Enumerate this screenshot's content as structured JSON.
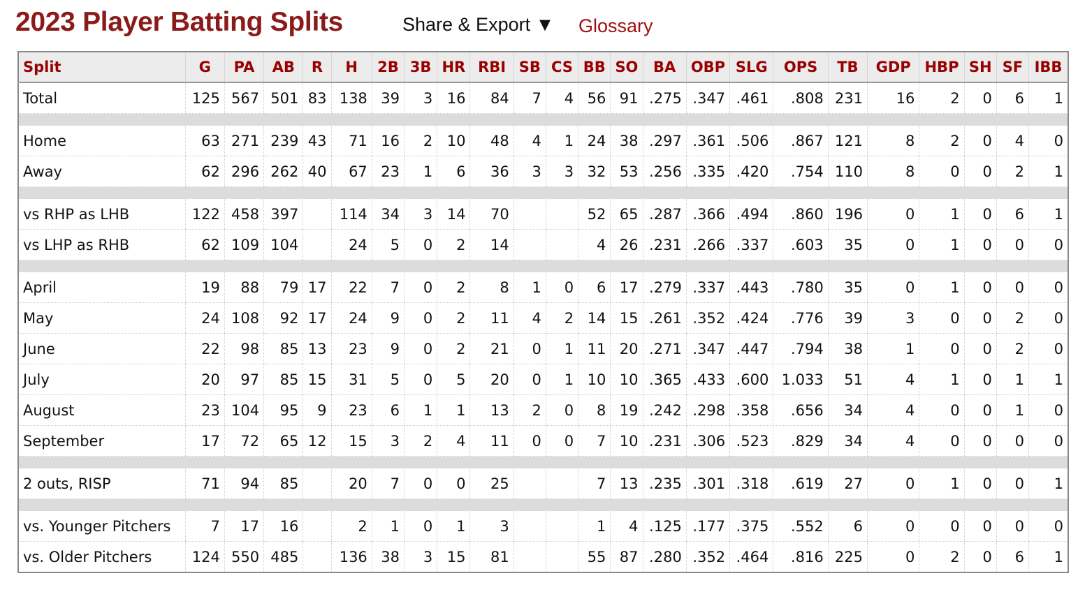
{
  "header": {
    "title": "2023 Player Batting Splits",
    "share_export": "Share & Export ▼",
    "glossary": "Glossary"
  },
  "columns": [
    "Split",
    "G",
    "PA",
    "AB",
    "R",
    "H",
    "2B",
    "3B",
    "HR",
    "RBI",
    "SB",
    "CS",
    "BB",
    "SO",
    "BA",
    "OBP",
    "SLG",
    "OPS",
    "TB",
    "GDP",
    "HBP",
    "SH",
    "SF",
    "IBB"
  ],
  "groups": [
    [
      [
        "Total",
        "125",
        "567",
        "501",
        "83",
        "138",
        "39",
        "3",
        "16",
        "84",
        "7",
        "4",
        "56",
        "91",
        ".275",
        ".347",
        ".461",
        ".808",
        "231",
        "16",
        "2",
        "0",
        "6",
        "1"
      ]
    ],
    [
      [
        "Home",
        "63",
        "271",
        "239",
        "43",
        "71",
        "16",
        "2",
        "10",
        "48",
        "4",
        "1",
        "24",
        "38",
        ".297",
        ".361",
        ".506",
        ".867",
        "121",
        "8",
        "2",
        "0",
        "4",
        "0"
      ],
      [
        "Away",
        "62",
        "296",
        "262",
        "40",
        "67",
        "23",
        "1",
        "6",
        "36",
        "3",
        "3",
        "32",
        "53",
        ".256",
        ".335",
        ".420",
        ".754",
        "110",
        "8",
        "0",
        "0",
        "2",
        "1"
      ]
    ],
    [
      [
        "vs RHP as LHB",
        "122",
        "458",
        "397",
        "",
        "114",
        "34",
        "3",
        "14",
        "70",
        "",
        "",
        "52",
        "65",
        ".287",
        ".366",
        ".494",
        ".860",
        "196",
        "0",
        "1",
        "0",
        "6",
        "1"
      ],
      [
        "vs LHP as RHB",
        "62",
        "109",
        "104",
        "",
        "24",
        "5",
        "0",
        "2",
        "14",
        "",
        "",
        "4",
        "26",
        ".231",
        ".266",
        ".337",
        ".603",
        "35",
        "0",
        "1",
        "0",
        "0",
        "0"
      ]
    ],
    [
      [
        "April",
        "19",
        "88",
        "79",
        "17",
        "22",
        "7",
        "0",
        "2",
        "8",
        "1",
        "0",
        "6",
        "17",
        ".279",
        ".337",
        ".443",
        ".780",
        "35",
        "0",
        "1",
        "0",
        "0",
        "0"
      ],
      [
        "May",
        "24",
        "108",
        "92",
        "17",
        "24",
        "9",
        "0",
        "2",
        "11",
        "4",
        "2",
        "14",
        "15",
        ".261",
        ".352",
        ".424",
        ".776",
        "39",
        "3",
        "0",
        "0",
        "2",
        "0"
      ],
      [
        "June",
        "22",
        "98",
        "85",
        "13",
        "23",
        "9",
        "0",
        "2",
        "21",
        "0",
        "1",
        "11",
        "20",
        ".271",
        ".347",
        ".447",
        ".794",
        "38",
        "1",
        "0",
        "0",
        "2",
        "0"
      ],
      [
        "July",
        "20",
        "97",
        "85",
        "15",
        "31",
        "5",
        "0",
        "5",
        "20",
        "0",
        "1",
        "10",
        "10",
        ".365",
        ".433",
        ".600",
        "1.033",
        "51",
        "4",
        "1",
        "0",
        "1",
        "1"
      ],
      [
        "August",
        "23",
        "104",
        "95",
        "9",
        "23",
        "6",
        "1",
        "1",
        "13",
        "2",
        "0",
        "8",
        "19",
        ".242",
        ".298",
        ".358",
        ".656",
        "34",
        "4",
        "0",
        "0",
        "1",
        "0"
      ],
      [
        "September",
        "17",
        "72",
        "65",
        "12",
        "15",
        "3",
        "2",
        "4",
        "11",
        "0",
        "0",
        "7",
        "10",
        ".231",
        ".306",
        ".523",
        ".829",
        "34",
        "4",
        "0",
        "0",
        "0",
        "0"
      ]
    ],
    [
      [
        "2 outs, RISP",
        "71",
        "94",
        "85",
        "",
        "20",
        "7",
        "0",
        "0",
        "25",
        "",
        "",
        "7",
        "13",
        ".235",
        ".301",
        ".318",
        ".619",
        "27",
        "0",
        "1",
        "0",
        "0",
        "1"
      ]
    ],
    [
      [
        "vs. Younger Pitchers",
        "7",
        "17",
        "16",
        "",
        "2",
        "1",
        "0",
        "1",
        "3",
        "",
        "",
        "1",
        "4",
        ".125",
        ".177",
        ".375",
        ".552",
        "6",
        "0",
        "0",
        "0",
        "0",
        "0"
      ],
      [
        "vs. Older Pitchers",
        "124",
        "550",
        "485",
        "",
        "136",
        "38",
        "3",
        "15",
        "81",
        "",
        "",
        "55",
        "87",
        ".280",
        ".352",
        ".464",
        ".816",
        "225",
        "0",
        "2",
        "0",
        "6",
        "1"
      ]
    ]
  ],
  "highlighted_rows": [
    "August",
    "September"
  ],
  "colors": {
    "title": "#8b1a1a",
    "header_text": "#990000",
    "header_bg": "#ececec",
    "spacer": "#dcdcdc",
    "highlight": "#ffce28"
  }
}
